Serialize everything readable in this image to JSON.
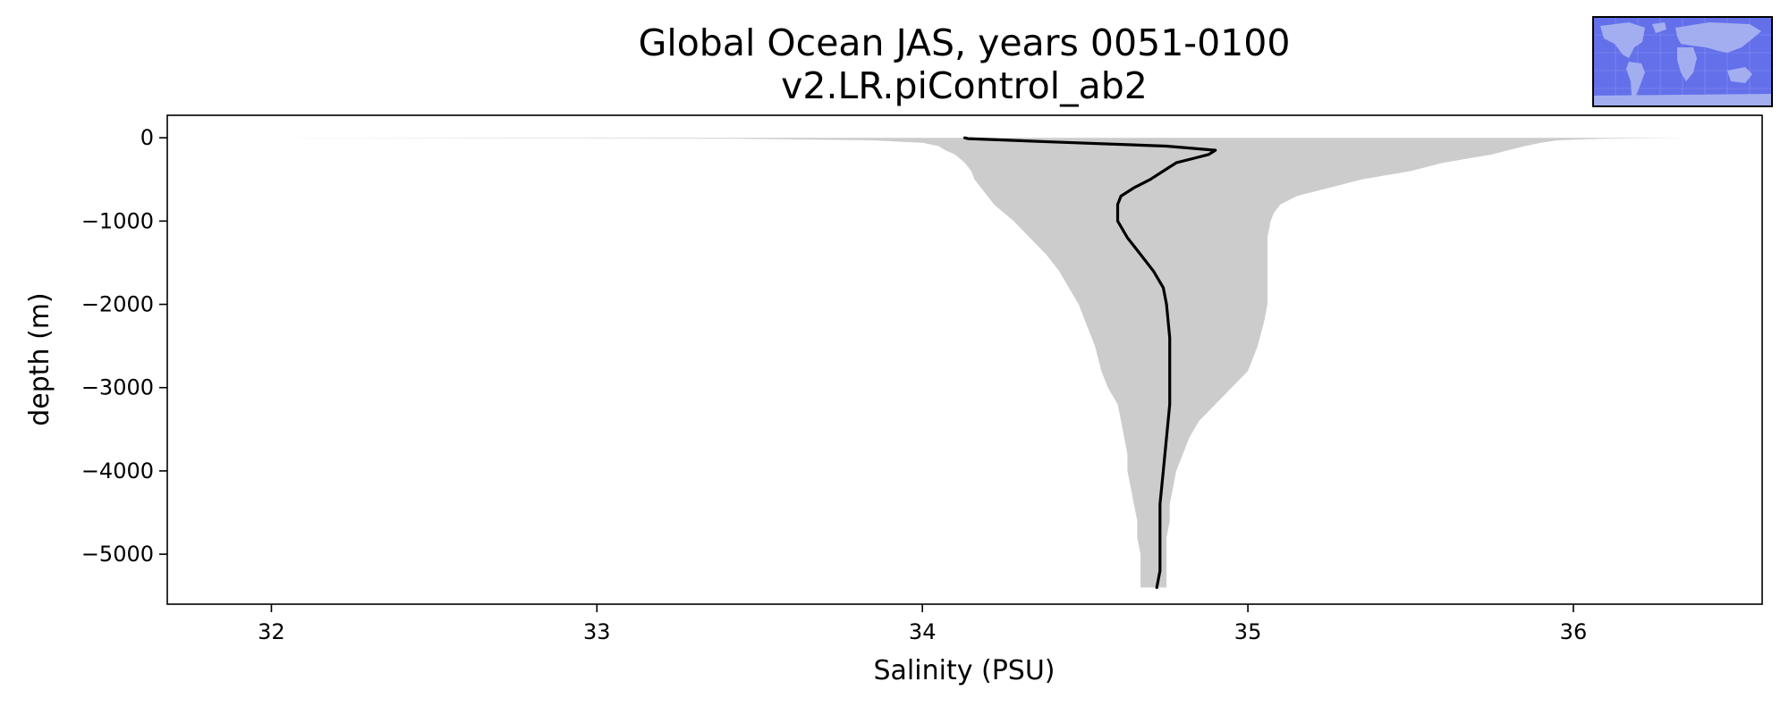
{
  "chart_data": {
    "type": "area",
    "title": "Global Ocean JAS, years 0051-0100",
    "subtitle": "v2.LR.piControl_ab2",
    "xlabel": "Salinity (PSU)",
    "ylabel": "depth (m)",
    "xlim": [
      31.68,
      36.58
    ],
    "ylim": [
      -5600,
      270
    ],
    "xticks": [
      32,
      33,
      34,
      35,
      36
    ],
    "yticks": [
      0,
      -1000,
      -2000,
      -3000,
      -4000,
      -5000
    ],
    "xtick_labels": [
      "32",
      "33",
      "34",
      "35",
      "36"
    ],
    "ytick_labels": [
      "0",
      "−1000",
      "−2000",
      "−3000",
      "−4000",
      "−5000"
    ],
    "grid": false,
    "colors": {
      "range_fill": "#cccccc",
      "mean_line": "#000000",
      "inset_ocean": "#6370ea"
    },
    "inset_map": "global-ocean-region-map",
    "series": [
      {
        "role": "range",
        "depth": [
          0,
          -10,
          -30,
          -60,
          -100,
          -150,
          -200,
          -300,
          -400,
          -500,
          -600,
          -700,
          -800,
          -900,
          -1000,
          -1200,
          -1400,
          -1600,
          -1800,
          -2000,
          -2200,
          -2500,
          -2800,
          -3000,
          -3200,
          -3400,
          -3600,
          -3800,
          -4000,
          -4200,
          -4400,
          -4600,
          -4800,
          -5000,
          -5200,
          -5400
        ],
        "min": [
          31.92,
          33.4,
          33.85,
          34.0,
          34.05,
          34.07,
          34.1,
          34.13,
          34.15,
          34.16,
          34.18,
          34.2,
          34.22,
          34.25,
          34.28,
          34.33,
          34.38,
          34.42,
          34.45,
          34.48,
          34.5,
          34.53,
          34.55,
          34.57,
          34.6,
          34.61,
          34.62,
          34.63,
          34.63,
          34.64,
          34.65,
          34.66,
          34.66,
          34.67,
          34.67,
          34.67
        ],
        "max": [
          36.35,
          36.1,
          35.95,
          35.9,
          35.85,
          35.8,
          35.75,
          35.6,
          35.5,
          35.35,
          35.25,
          35.15,
          35.1,
          35.08,
          35.07,
          35.06,
          35.06,
          35.06,
          35.06,
          35.06,
          35.05,
          35.03,
          35.0,
          34.95,
          34.9,
          34.85,
          34.82,
          34.8,
          34.78,
          34.77,
          34.76,
          34.76,
          34.75,
          34.75,
          34.75,
          34.75
        ]
      },
      {
        "role": "mean",
        "depth": [
          0,
          -10,
          -50,
          -100,
          -150,
          -200,
          -250,
          -300,
          -400,
          -500,
          -600,
          -700,
          -800,
          -900,
          -1000,
          -1200,
          -1400,
          -1600,
          -1800,
          -2000,
          -2400,
          -2800,
          -3200,
          -3600,
          -4000,
          -4400,
          -4800,
          -5200,
          -5400
        ],
        "values": [
          34.13,
          34.14,
          34.4,
          34.75,
          34.9,
          34.88,
          34.83,
          34.78,
          34.74,
          34.7,
          34.65,
          34.61,
          34.6,
          34.6,
          34.6,
          34.63,
          34.67,
          34.71,
          34.74,
          34.75,
          34.76,
          34.76,
          34.76,
          34.75,
          34.74,
          34.73,
          34.73,
          34.73,
          34.72
        ]
      }
    ]
  }
}
